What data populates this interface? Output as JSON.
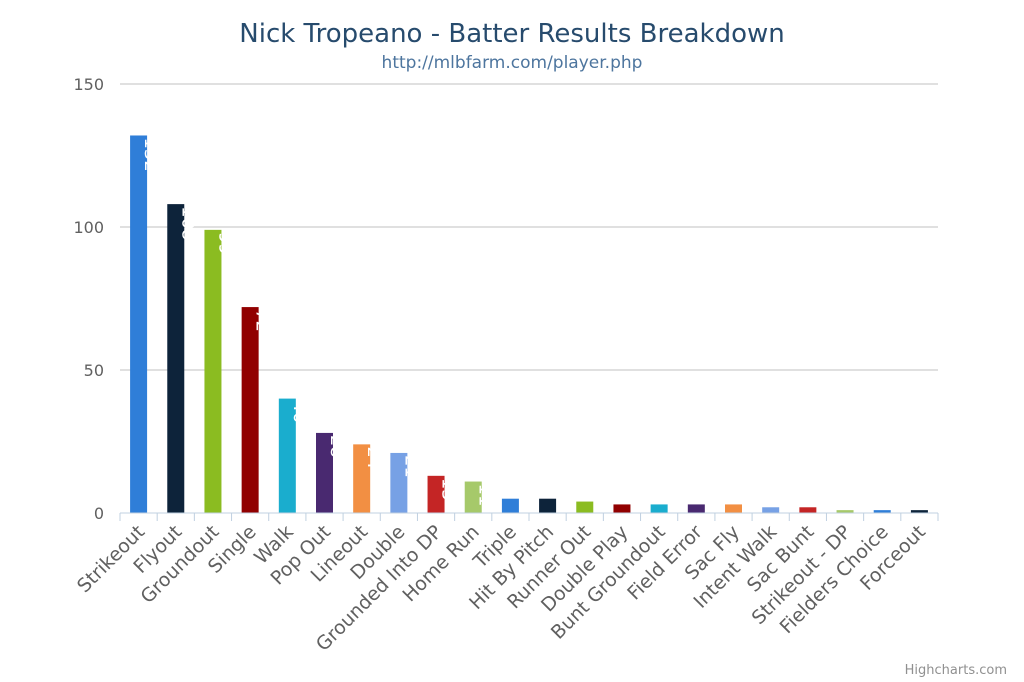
{
  "chart_data": {
    "type": "bar",
    "title": "Nick Tropeano - Batter Results Breakdown",
    "subtitle": "http://mlbfarm.com/player.php",
    "credits": "Highcharts.com",
    "ylim": [
      0,
      150
    ],
    "yticks": [
      0,
      50,
      100,
      150
    ],
    "grid": true,
    "categories": [
      "Strikeout",
      "Flyout",
      "Groundout",
      "Single",
      "Walk",
      "Pop Out",
      "Lineout",
      "Double",
      "Grounded Into DP",
      "Home Run",
      "Triple",
      "Hit By Pitch",
      "Runner Out",
      "Double Play",
      "Bunt Groundout",
      "Field Error",
      "Sac Fly",
      "Intent Walk",
      "Sac Bunt",
      "Strikeout - DP",
      "Fielders Choice",
      "Forceout"
    ],
    "values": [
      132,
      108,
      99,
      72,
      40,
      28,
      24,
      21,
      13,
      11,
      5,
      5,
      4,
      3,
      3,
      3,
      3,
      2,
      2,
      1,
      1,
      1
    ],
    "data_labels": [
      "132",
      "108",
      "99",
      "72",
      "40",
      "28",
      "24",
      "21",
      "13",
      "11",
      "",
      "",
      "",
      "",
      "",
      "",
      "",
      "",
      "",
      "",
      "",
      ""
    ],
    "colors": [
      "#2f7ed8",
      "#0d233a",
      "#8bbc21",
      "#910000",
      "#1aadce",
      "#492970",
      "#f28f43",
      "#77a1e5",
      "#c42525",
      "#a6c96a",
      "#2f7ed8",
      "#0d233a",
      "#8bbc21",
      "#910000",
      "#1aadce",
      "#492970",
      "#f28f43",
      "#77a1e5",
      "#c42525",
      "#a6c96a",
      "#2f7ed8",
      "#0d233a"
    ]
  }
}
